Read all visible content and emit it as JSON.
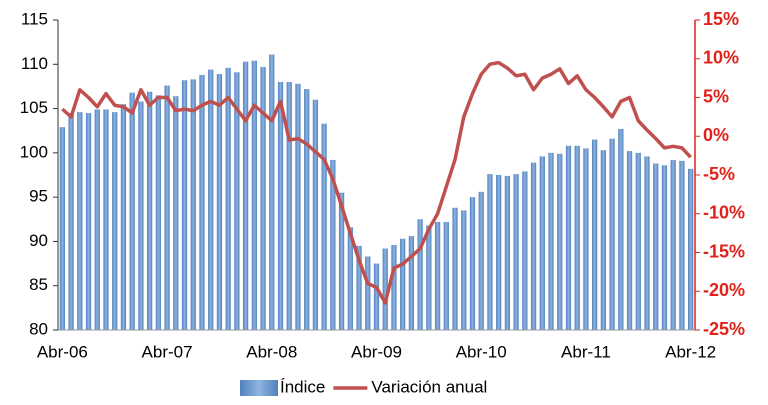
{
  "chart_data": {
    "type": "bar",
    "categories": [
      "Abr-06",
      null,
      null,
      null,
      null,
      null,
      null,
      null,
      null,
      null,
      null,
      null,
      "Abr-07",
      null,
      null,
      null,
      null,
      null,
      null,
      null,
      null,
      null,
      null,
      null,
      "Abr-08",
      null,
      null,
      null,
      null,
      null,
      null,
      null,
      null,
      null,
      null,
      null,
      "Abr-09",
      null,
      null,
      null,
      null,
      null,
      null,
      null,
      null,
      null,
      null,
      null,
      "Abr-10",
      null,
      null,
      null,
      null,
      null,
      null,
      null,
      null,
      null,
      null,
      null,
      "Abr-11",
      null,
      null,
      null,
      null,
      null,
      null,
      null,
      null,
      null,
      null,
      null,
      "Abr-12"
    ],
    "series": [
      {
        "name": "Índice",
        "color": "#4f81bd",
        "values": [
          102.9,
          104.5,
          104.6,
          104.5,
          104.9,
          104.9,
          104.6,
          105.5,
          106.8,
          105.8,
          106.9,
          106.5,
          107.6,
          106.4,
          108.2,
          108.3,
          108.8,
          109.4,
          108.9,
          109.6,
          109.1,
          110.3,
          110.4,
          109.7,
          111.1,
          108.0,
          108.0,
          107.8,
          107.2,
          106.0,
          103.3,
          99.2,
          95.5,
          91.6,
          89.5,
          88.3,
          87.5,
          89.2,
          89.6,
          90.3,
          90.6,
          92.5,
          91.8,
          92.2,
          92.2,
          93.8,
          93.5,
          95.0,
          95.6,
          97.6,
          97.5,
          97.4,
          97.6,
          97.9,
          98.9,
          99.6,
          100.0,
          99.9,
          100.8,
          100.8,
          100.5,
          101.5,
          100.3,
          101.6,
          102.7,
          100.2,
          100.0,
          99.6,
          98.8,
          98.6,
          99.2,
          99.1,
          98.2
        ]
      },
      {
        "name": "Variación anual",
        "color": "#c0504d",
        "type": "line",
        "axis": "y2",
        "values": [
          3.5,
          2.5,
          6.0,
          5.0,
          3.8,
          5.5,
          4.0,
          3.8,
          3.0,
          6.0,
          4.0,
          5.0,
          5.0,
          3.3,
          3.5,
          3.3,
          4.0,
          4.5,
          4.0,
          5.0,
          3.5,
          2.0,
          4.0,
          3.0,
          2.0,
          4.5,
          -0.5,
          -0.3,
          -1.0,
          -2.0,
          -3.0,
          -5.5,
          -9.0,
          -12.5,
          -16.0,
          -19.0,
          -19.5,
          -21.5,
          -17.0,
          -16.5,
          -15.5,
          -14.5,
          -12.0,
          -10.0,
          -6.5,
          -3.0,
          2.5,
          5.5,
          8.0,
          9.3,
          9.5,
          8.8,
          7.8,
          8.0,
          6.0,
          7.5,
          8.0,
          8.7,
          6.8,
          7.8,
          6.0,
          5.0,
          3.8,
          2.5,
          4.5,
          5.0,
          2.0,
          0.8,
          -0.3,
          -1.5,
          -1.3,
          -1.5,
          -2.7
        ]
      }
    ],
    "ylim": [
      80,
      115
    ],
    "yticks": [
      80,
      85,
      90,
      95,
      100,
      105,
      110,
      115
    ],
    "y2lim": [
      -25,
      15
    ],
    "y2ticks": [
      {
        "value": -25,
        "label": "-25%"
      },
      {
        "value": -20,
        "label": "-20%"
      },
      {
        "value": -15,
        "label": "-15%"
      },
      {
        "value": -10,
        "label": "-10%"
      },
      {
        "value": -5,
        "label": "-5%"
      },
      {
        "value": 0,
        "label": "0%"
      },
      {
        "value": 5,
        "label": "5%"
      },
      {
        "value": 10,
        "label": "10%"
      },
      {
        "value": 15,
        "label": "15%"
      }
    ],
    "legend": "bottom",
    "grid": false
  }
}
